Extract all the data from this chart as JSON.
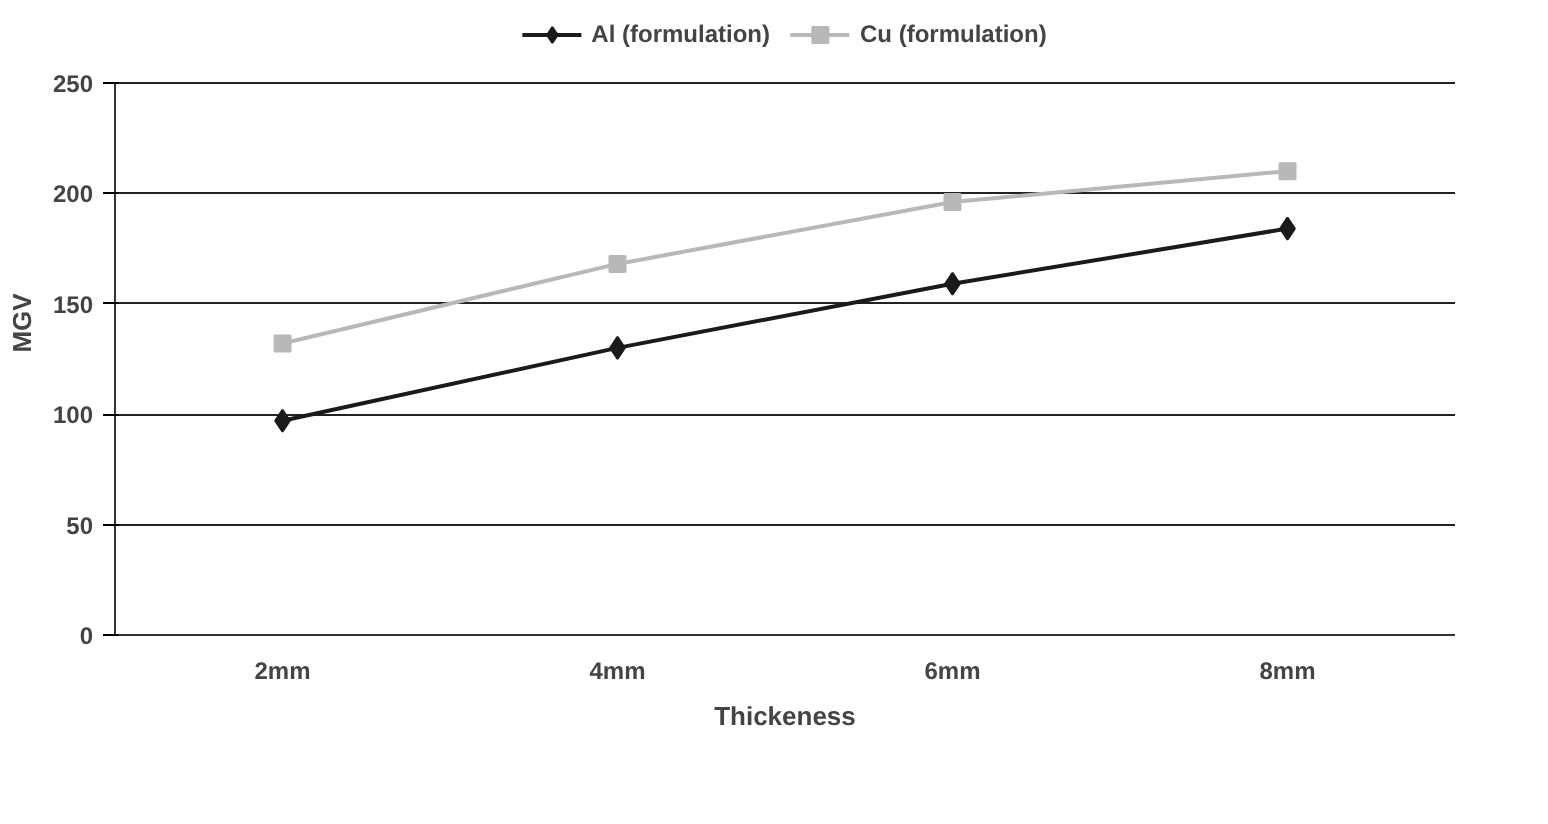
{
  "chart_data": {
    "type": "line",
    "xlabel": "Thickeness",
    "ylabel": "MGV",
    "categories": [
      "2mm",
      "4mm",
      "6mm",
      "8mm"
    ],
    "series": [
      {
        "name": "Al (formulation)",
        "color": "#1a1a1a",
        "marker": "diamond",
        "values": [
          97,
          130,
          159,
          184
        ]
      },
      {
        "name": "Cu (formulation)",
        "color": "#b8b8b8",
        "marker": "square",
        "values": [
          132,
          168,
          196,
          210
        ]
      }
    ],
    "ylim": [
      0,
      250
    ],
    "yticks": [
      0,
      50,
      100,
      150,
      200,
      250
    ],
    "grid": "y",
    "legend": "top"
  }
}
